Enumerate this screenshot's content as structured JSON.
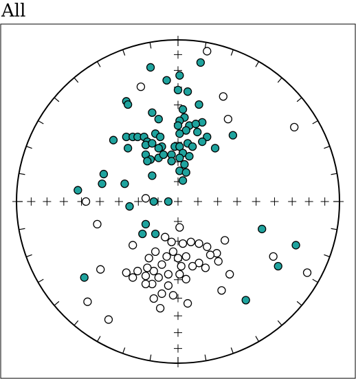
{
  "chart_data": {
    "type": "scatter",
    "title": "All",
    "xlim": [
      -1,
      1
    ],
    "ylim": [
      -1,
      1
    ],
    "series": [
      {
        "color": "#1fa39e",
        "x": [
          -0.17,
          0.14,
          0.01,
          -0.07,
          0.0,
          0.06,
          -0.32,
          -0.31,
          0.13,
          -0.16,
          -0.12,
          0.03,
          0.04,
          0.01,
          0.15,
          0.0,
          0.07,
          0.11,
          0.05,
          0.12,
          0.18,
          0.34,
          -0.4,
          -0.32,
          -0.28,
          -0.25,
          -0.21,
          -0.19,
          -0.14,
          -0.11,
          -0.1,
          -0.2,
          -0.16,
          -0.12,
          -0.31,
          -0.02,
          0.01,
          0.06,
          0.09,
          0.15,
          0.23,
          0.01,
          -0.04,
          0.03,
          0.07,
          -0.2,
          -0.17,
          -0.12,
          -0.09,
          -0.19,
          -0.04,
          0.01,
          0.04,
          0.01,
          0.05,
          0.03,
          -0.46,
          -0.47,
          -0.33,
          -0.16,
          -0.62,
          -0.3,
          -0.06,
          -0.15,
          -0.2,
          -0.22,
          -0.14,
          0.52,
          0.73,
          0.62,
          -0.58,
          0.42
        ],
        "y": [
          0.83,
          0.86,
          0.78,
          0.75,
          0.69,
          0.68,
          0.62,
          0.6,
          0.6,
          0.55,
          0.51,
          0.57,
          0.52,
          0.5,
          0.49,
          0.47,
          0.47,
          0.48,
          0.44,
          0.43,
          0.4,
          0.41,
          0.38,
          0.4,
          0.4,
          0.4,
          0.4,
          0.37,
          0.42,
          0.4,
          0.34,
          0.35,
          0.36,
          0.33,
          0.33,
          0.34,
          0.34,
          0.36,
          0.34,
          0.37,
          0.33,
          0.42,
          0.29,
          0.3,
          0.28,
          0.29,
          0.26,
          0.27,
          0.29,
          0.25,
          0.25,
          0.27,
          0.23,
          0.19,
          0.18,
          0.13,
          0.17,
          0.11,
          0.11,
          0.16,
          0.07,
          -0.03,
          0.0,
          0.0,
          -0.14,
          -0.2,
          -0.2,
          -0.17,
          -0.27,
          -0.4,
          -0.47,
          -0.61
        ]
      },
      {
        "color": "#ffffff",
        "x": [
          0.18,
          -0.23,
          0.28,
          0.31,
          0.72,
          -0.57,
          -0.2,
          -0.5,
          0.01,
          -0.28,
          -0.08,
          -0.04,
          0.03,
          0.08,
          0.13,
          0.18,
          0.29,
          0.24,
          0.25,
          0.2,
          -0.03,
          -0.14,
          -0.07,
          0.0,
          0.05,
          -0.18,
          0.02,
          0.13,
          0.17,
          0.09,
          -0.1,
          -0.06,
          0.01,
          0.05,
          -0.15,
          -0.25,
          -0.19,
          -0.32,
          -0.28,
          -0.2,
          -0.12,
          -0.16,
          -0.2,
          -0.06,
          -0.03,
          -0.1,
          -0.15,
          -0.11,
          -0.48,
          -0.56,
          -0.43,
          0.06,
          0.27,
          0.32,
          0.59,
          0.8
        ],
        "y": [
          0.93,
          0.71,
          0.65,
          0.51,
          0.46,
          0.0,
          0.02,
          -0.14,
          -0.16,
          -0.27,
          -0.22,
          -0.25,
          -0.26,
          -0.25,
          -0.26,
          -0.28,
          -0.24,
          -0.32,
          -0.37,
          -0.33,
          -0.31,
          -0.31,
          -0.34,
          -0.35,
          -0.34,
          -0.35,
          -0.4,
          -0.38,
          -0.41,
          -0.4,
          -0.39,
          -0.45,
          -0.45,
          -0.48,
          -0.43,
          -0.43,
          -0.41,
          -0.44,
          -0.47,
          -0.46,
          -0.47,
          -0.51,
          -0.51,
          -0.52,
          -0.58,
          -0.57,
          -0.6,
          -0.66,
          -0.42,
          -0.62,
          -0.73,
          -0.63,
          -0.55,
          -0.45,
          -0.34,
          -0.44
        ]
      }
    ]
  }
}
